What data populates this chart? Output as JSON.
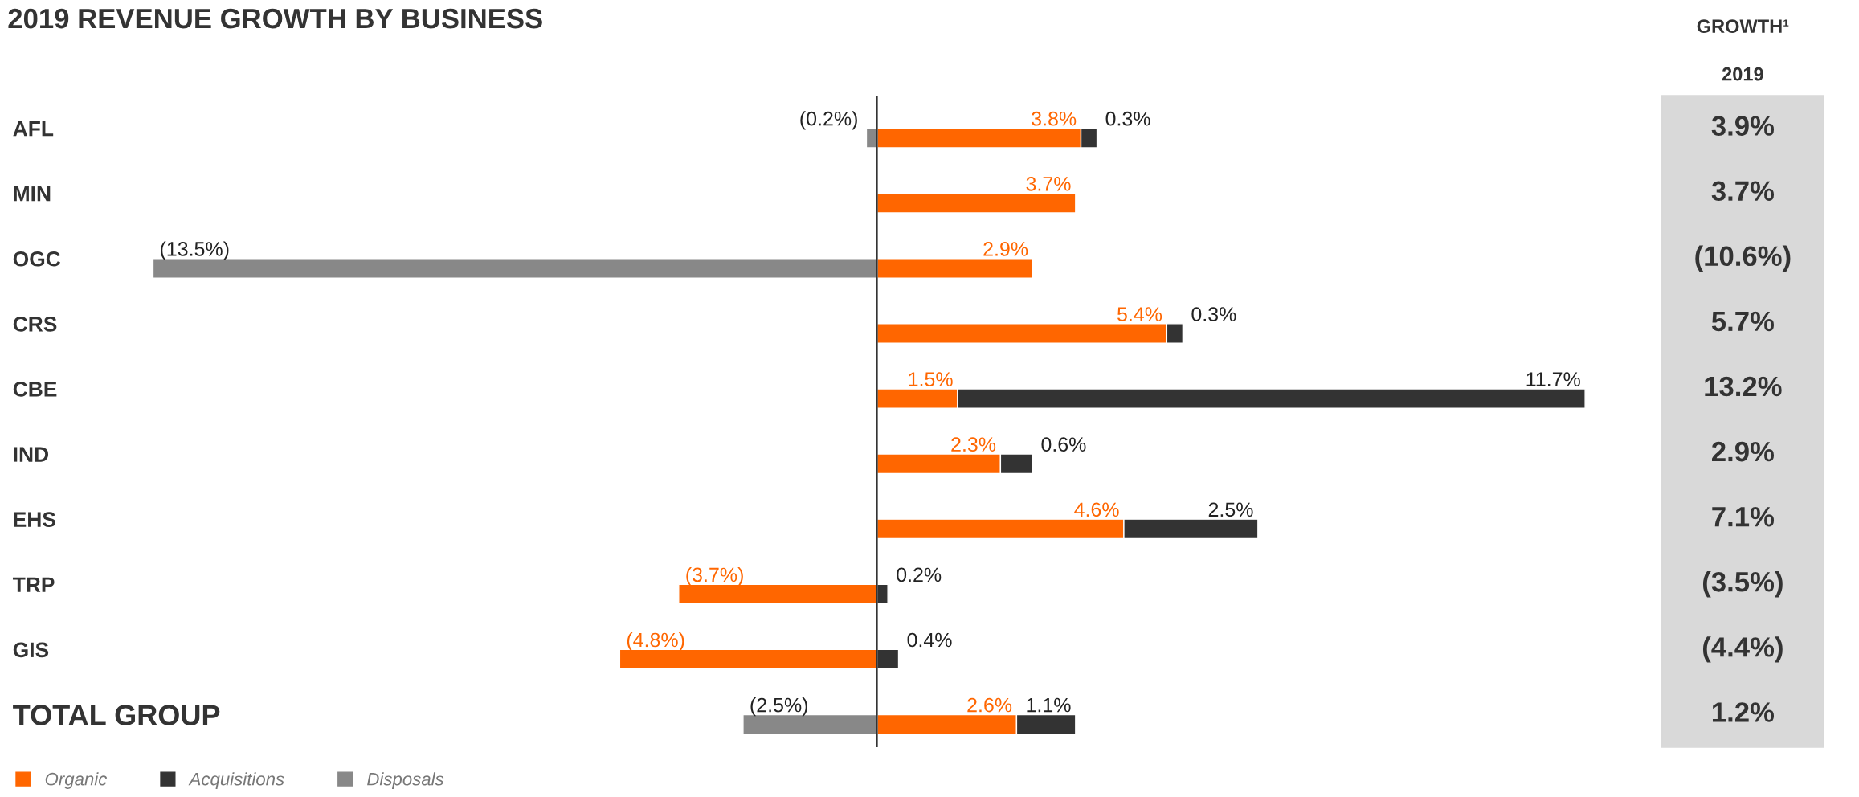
{
  "chart_data": {
    "type": "bar",
    "orientation": "horizontal",
    "stacked": true,
    "title": "2019 REVENUE GROWTH BY BUSINESS",
    "categories": [
      "AFL",
      "MIN",
      "OGC",
      "CRS",
      "CBE",
      "IND",
      "EHS",
      "TRP",
      "GIS",
      "TOTAL GROUP"
    ],
    "series": [
      {
        "name": "Organic",
        "color": "#ff6600",
        "values": [
          3.8,
          3.7,
          2.9,
          5.4,
          1.5,
          2.3,
          4.6,
          -3.7,
          -4.8,
          2.6
        ],
        "value_labels": [
          "3.8%",
          "3.7%",
          "2.9%",
          "5.4%",
          "1.5%",
          "2.3%",
          "4.6%",
          "(3.7%)",
          "(4.8%)",
          "2.6%"
        ]
      },
      {
        "name": "Acquisitions",
        "color": "#333333",
        "values": [
          0.3,
          null,
          null,
          0.3,
          11.7,
          0.6,
          2.5,
          0.2,
          0.4,
          1.1
        ],
        "value_labels": [
          "0.3%",
          null,
          null,
          "0.3%",
          "11.7%",
          "0.6%",
          "2.5%",
          "0.2%",
          "0.4%",
          "1.1%"
        ]
      },
      {
        "name": "Disposals",
        "color": "#888888",
        "values": [
          -0.2,
          null,
          -13.5,
          null,
          null,
          null,
          null,
          null,
          null,
          -2.5
        ],
        "value_labels": [
          "(0.2%)",
          null,
          "(13.5%)",
          null,
          null,
          null,
          null,
          null,
          null,
          "(2.5%)"
        ]
      }
    ],
    "annotations": [
      "GROWTH¹",
      "2019",
      "3.9%",
      "3.7%",
      "(10.6%)",
      "5.7%",
      "13.2%",
      "2.9%",
      "7.1%",
      "(3.5%)",
      "(4.4%)",
      "1.2%"
    ],
    "legend": "bottom left",
    "tick_labels": "y"
  }
}
